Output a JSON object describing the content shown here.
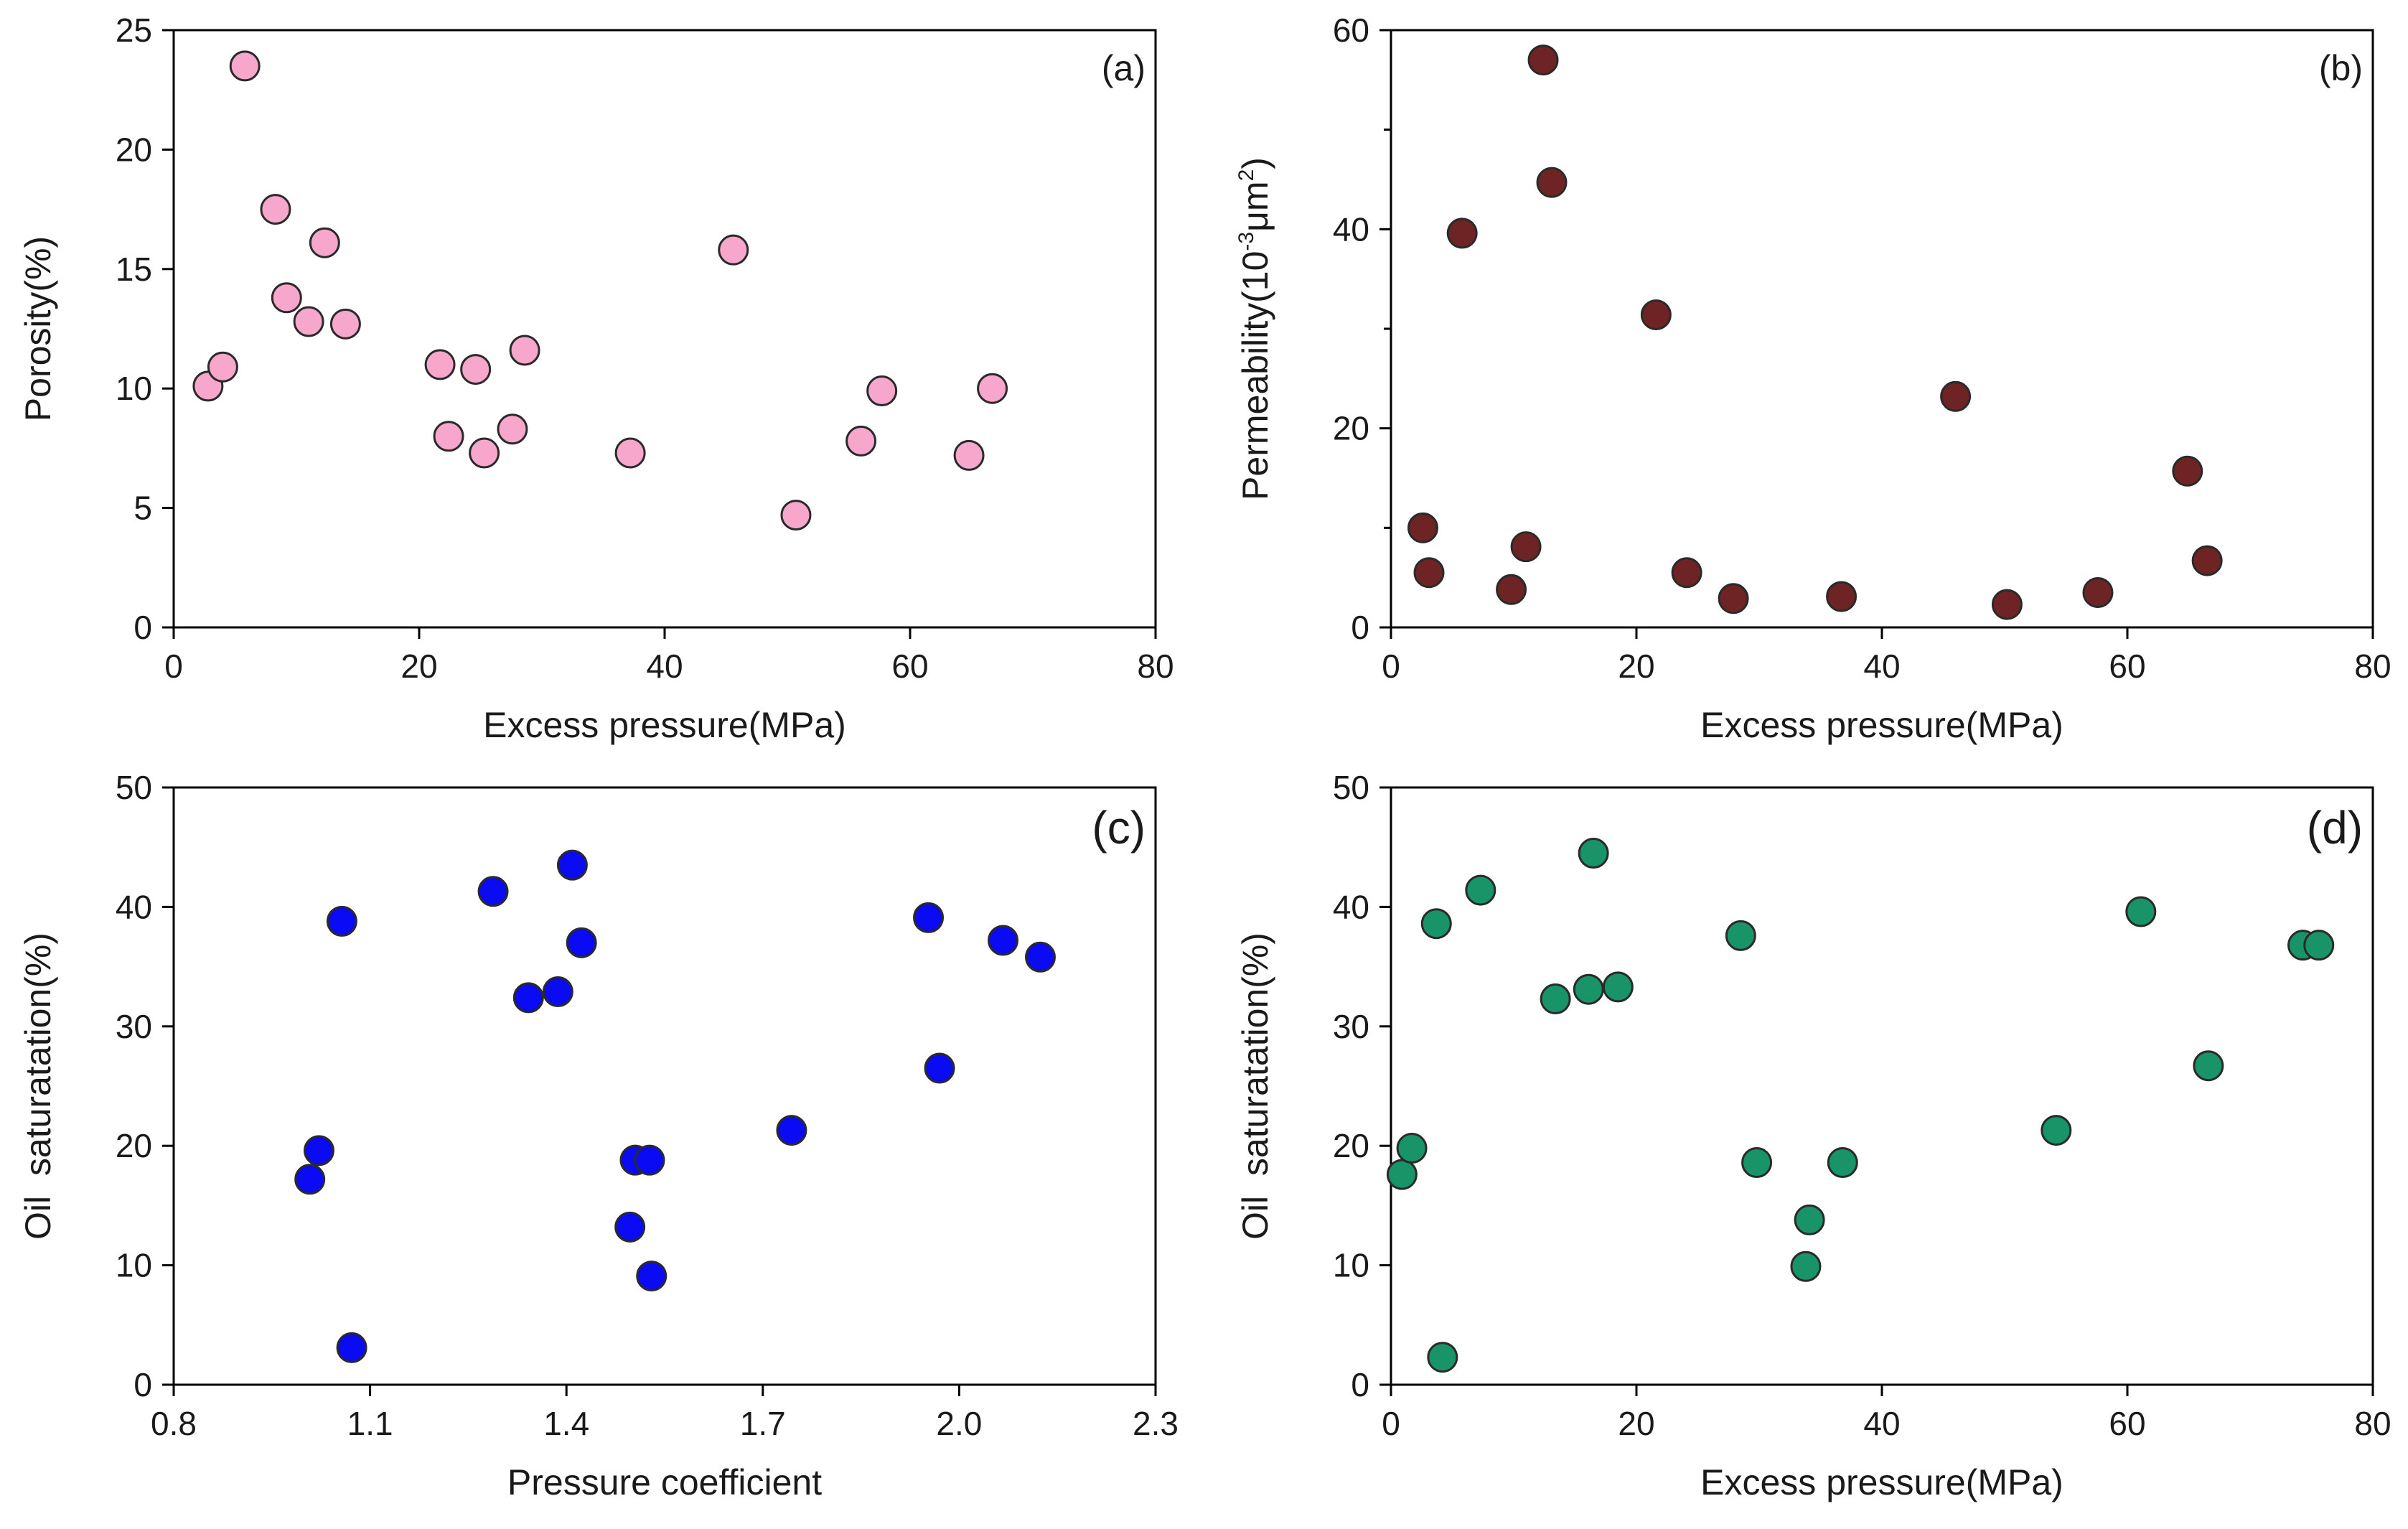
{
  "chart_data": [
    {
      "type": "scatter",
      "panel_label": "(a)",
      "xlabel": "Excess pressure(MPa)",
      "ylabel": "Porosity(%)",
      "xlim": [
        0,
        80
      ],
      "ylim": [
        0,
        25
      ],
      "xticks": [
        0,
        20,
        40,
        60,
        80
      ],
      "xtick_labels": [
        "0",
        "20",
        "40",
        "60",
        "80"
      ],
      "yticks": [
        0,
        5,
        10,
        15,
        20,
        25
      ],
      "ytick_labels": [
        "0",
        "5",
        "10",
        "15",
        "20",
        "25"
      ],
      "marker_color": "#f7a6cc",
      "points": [
        {
          "x": 2.8,
          "y": 10.1
        },
        {
          "x": 4.0,
          "y": 10.9
        },
        {
          "x": 5.8,
          "y": 23.5
        },
        {
          "x": 8.3,
          "y": 17.5
        },
        {
          "x": 9.2,
          "y": 13.8
        },
        {
          "x": 11.0,
          "y": 12.8
        },
        {
          "x": 12.3,
          "y": 16.1
        },
        {
          "x": 14.0,
          "y": 12.7
        },
        {
          "x": 21.7,
          "y": 11.0
        },
        {
          "x": 22.4,
          "y": 8.0
        },
        {
          "x": 24.6,
          "y": 10.8
        },
        {
          "x": 25.3,
          "y": 7.3
        },
        {
          "x": 27.6,
          "y": 8.3
        },
        {
          "x": 28.6,
          "y": 11.6
        },
        {
          "x": 37.2,
          "y": 7.3
        },
        {
          "x": 45.6,
          "y": 15.8
        },
        {
          "x": 50.7,
          "y": 4.7
        },
        {
          "x": 56.0,
          "y": 7.8
        },
        {
          "x": 57.7,
          "y": 9.9
        },
        {
          "x": 64.8,
          "y": 7.2
        },
        {
          "x": 66.7,
          "y": 10.0
        }
      ]
    },
    {
      "type": "scatter",
      "panel_label": "(b)",
      "xlabel": "Excess pressure(MPa)",
      "ylabel_main": "Permeability(10",
      "ylabel_sup1": "-3",
      "ylabel_mid": "μm",
      "ylabel_sup2": "2",
      "ylabel_end": ")",
      "xlim": [
        0,
        80
      ],
      "ylim": [
        0,
        60
      ],
      "xticks": [
        0,
        20,
        40,
        60,
        80
      ],
      "xtick_labels": [
        "0",
        "20",
        "40",
        "60",
        "80"
      ],
      "yticks": [
        0,
        20,
        40,
        60
      ],
      "ytick_labels": [
        "0",
        "20",
        "40",
        "60"
      ],
      "minor_yticks": [
        10,
        30,
        50
      ],
      "marker_color": "#6e2424",
      "points": [
        {
          "x": 2.6,
          "y": 10.0
        },
        {
          "x": 3.1,
          "y": 5.5
        },
        {
          "x": 5.8,
          "y": 39.6
        },
        {
          "x": 9.8,
          "y": 3.8
        },
        {
          "x": 11.0,
          "y": 8.1
        },
        {
          "x": 12.4,
          "y": 57.0
        },
        {
          "x": 13.1,
          "y": 44.7
        },
        {
          "x": 21.6,
          "y": 31.4
        },
        {
          "x": 24.1,
          "y": 5.5
        },
        {
          "x": 27.9,
          "y": 2.9
        },
        {
          "x": 36.7,
          "y": 3.1
        },
        {
          "x": 46.0,
          "y": 23.2
        },
        {
          "x": 50.2,
          "y": 2.3
        },
        {
          "x": 57.6,
          "y": 3.5
        },
        {
          "x": 64.9,
          "y": 15.7
        },
        {
          "x": 66.5,
          "y": 6.7
        }
      ]
    },
    {
      "type": "scatter",
      "panel_label": "(c)",
      "xlabel": "Pressure coefficient",
      "ylabel": "Oil  saturatation(%)",
      "xlim": [
        0.8,
        2.3
      ],
      "ylim": [
        0,
        50
      ],
      "xticks": [
        0.8,
        1.1,
        1.4,
        1.7,
        2.0,
        2.3
      ],
      "xtick_labels": [
        "0.8",
        "1.1",
        "1.4",
        "1.7",
        "2.0",
        "2.3"
      ],
      "yticks": [
        0,
        10,
        20,
        30,
        40,
        50
      ],
      "ytick_labels": [
        "0",
        "10",
        "20",
        "30",
        "40",
        "50"
      ],
      "marker_color": "#0a0af5",
      "points": [
        {
          "x": 1.008,
          "y": 17.2
        },
        {
          "x": 1.022,
          "y": 19.6
        },
        {
          "x": 1.057,
          "y": 38.8
        },
        {
          "x": 1.072,
          "y": 3.1
        },
        {
          "x": 1.288,
          "y": 41.3
        },
        {
          "x": 1.342,
          "y": 32.4
        },
        {
          "x": 1.387,
          "y": 32.9
        },
        {
          "x": 1.409,
          "y": 43.5
        },
        {
          "x": 1.423,
          "y": 37.0
        },
        {
          "x": 1.497,
          "y": 13.2
        },
        {
          "x": 1.505,
          "y": 18.8
        },
        {
          "x": 1.527,
          "y": 18.8
        },
        {
          "x": 1.53,
          "y": 9.1
        },
        {
          "x": 1.744,
          "y": 21.3
        },
        {
          "x": 1.953,
          "y": 39.1
        },
        {
          "x": 1.97,
          "y": 26.5
        },
        {
          "x": 2.067,
          "y": 37.2
        },
        {
          "x": 2.124,
          "y": 35.8
        }
      ]
    },
    {
      "type": "scatter",
      "panel_label": "(d)",
      "xlabel": "Excess pressure(MPa)",
      "ylabel": "Oil  saturatation(%)",
      "xlim": [
        0,
        80
      ],
      "ylim": [
        0,
        50
      ],
      "xticks": [
        0,
        20,
        40,
        60,
        80
      ],
      "xtick_labels": [
        "0",
        "20",
        "40",
        "60",
        "80"
      ],
      "yticks": [
        0,
        10,
        20,
        30,
        40,
        50
      ],
      "ytick_labels": [
        "0",
        "10",
        "20",
        "30",
        "40",
        "50"
      ],
      "marker_color": "#199368",
      "points": [
        {
          "x": 0.9,
          "y": 17.6
        },
        {
          "x": 1.7,
          "y": 19.8
        },
        {
          "x": 3.7,
          "y": 38.6
        },
        {
          "x": 4.2,
          "y": 2.3
        },
        {
          "x": 7.3,
          "y": 41.4
        },
        {
          "x": 13.4,
          "y": 32.3
        },
        {
          "x": 16.1,
          "y": 33.1
        },
        {
          "x": 16.5,
          "y": 44.5
        },
        {
          "x": 18.5,
          "y": 33.3
        },
        {
          "x": 28.5,
          "y": 37.6
        },
        {
          "x": 29.8,
          "y": 18.6
        },
        {
          "x": 33.8,
          "y": 9.9
        },
        {
          "x": 34.1,
          "y": 13.8
        },
        {
          "x": 36.8,
          "y": 18.6
        },
        {
          "x": 54.2,
          "y": 21.3
        },
        {
          "x": 61.1,
          "y": 39.6
        },
        {
          "x": 66.6,
          "y": 26.7
        },
        {
          "x": 74.3,
          "y": 36.8
        },
        {
          "x": 75.6,
          "y": 36.8
        }
      ]
    }
  ]
}
